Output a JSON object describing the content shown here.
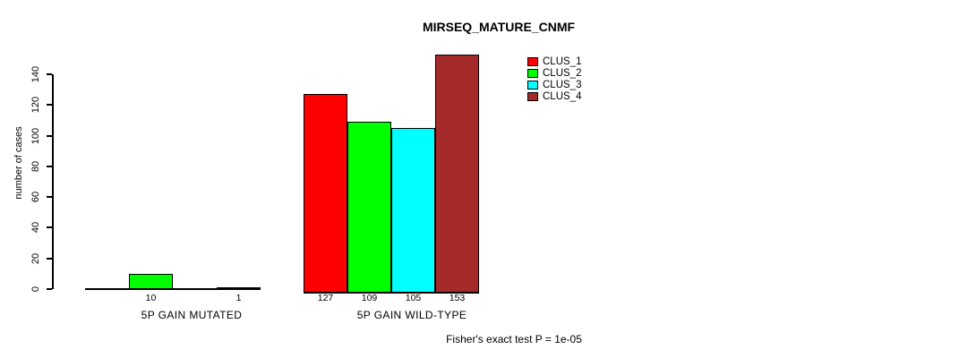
{
  "title": "MIRSEQ_MATURE_CNMF",
  "y_axis": {
    "label": "number of cases",
    "ticks": [
      0,
      20,
      40,
      60,
      80,
      100,
      120,
      140
    ]
  },
  "legend": {
    "items": [
      {
        "label": "CLUS_1",
        "color": "#FF0000"
      },
      {
        "label": "CLUS_2",
        "color": "#00FF00"
      },
      {
        "label": "CLUS_3",
        "color": "#00FFFF"
      },
      {
        "label": "CLUS_4",
        "color": "#A52A2A"
      }
    ]
  },
  "footer": "Fisher's exact test P = 1e-05",
  "chart_data": {
    "type": "bar",
    "title": "MIRSEQ_MATURE_CNMF",
    "ylabel": "number of cases",
    "categories": [
      "5P GAIN MUTATED",
      "5P GAIN WILD-TYPE"
    ],
    "series": [
      {
        "name": "CLUS_1",
        "color": "#FF0000",
        "values": [
          0,
          127
        ]
      },
      {
        "name": "CLUS_2",
        "color": "#00FF00",
        "values": [
          10,
          109
        ]
      },
      {
        "name": "CLUS_3",
        "color": "#00FFFF",
        "values": [
          0,
          105
        ]
      },
      {
        "name": "CLUS_4",
        "color": "#A52A2A",
        "values": [
          1,
          153
        ]
      }
    ],
    "bar_value_labels": [
      [
        null,
        10,
        null,
        1
      ],
      [
        127,
        109,
        105,
        153
      ]
    ],
    "ylim": [
      0,
      140
    ],
    "yticks": [
      0,
      20,
      40,
      60,
      80,
      100,
      120,
      140
    ],
    "grid": false,
    "legend_position": "top-right",
    "legend_entries": [
      "CLUS_1",
      "CLUS_2",
      "CLUS_3",
      "CLUS_4"
    ],
    "annotation": "Fisher's exact test P = 1e-05"
  }
}
